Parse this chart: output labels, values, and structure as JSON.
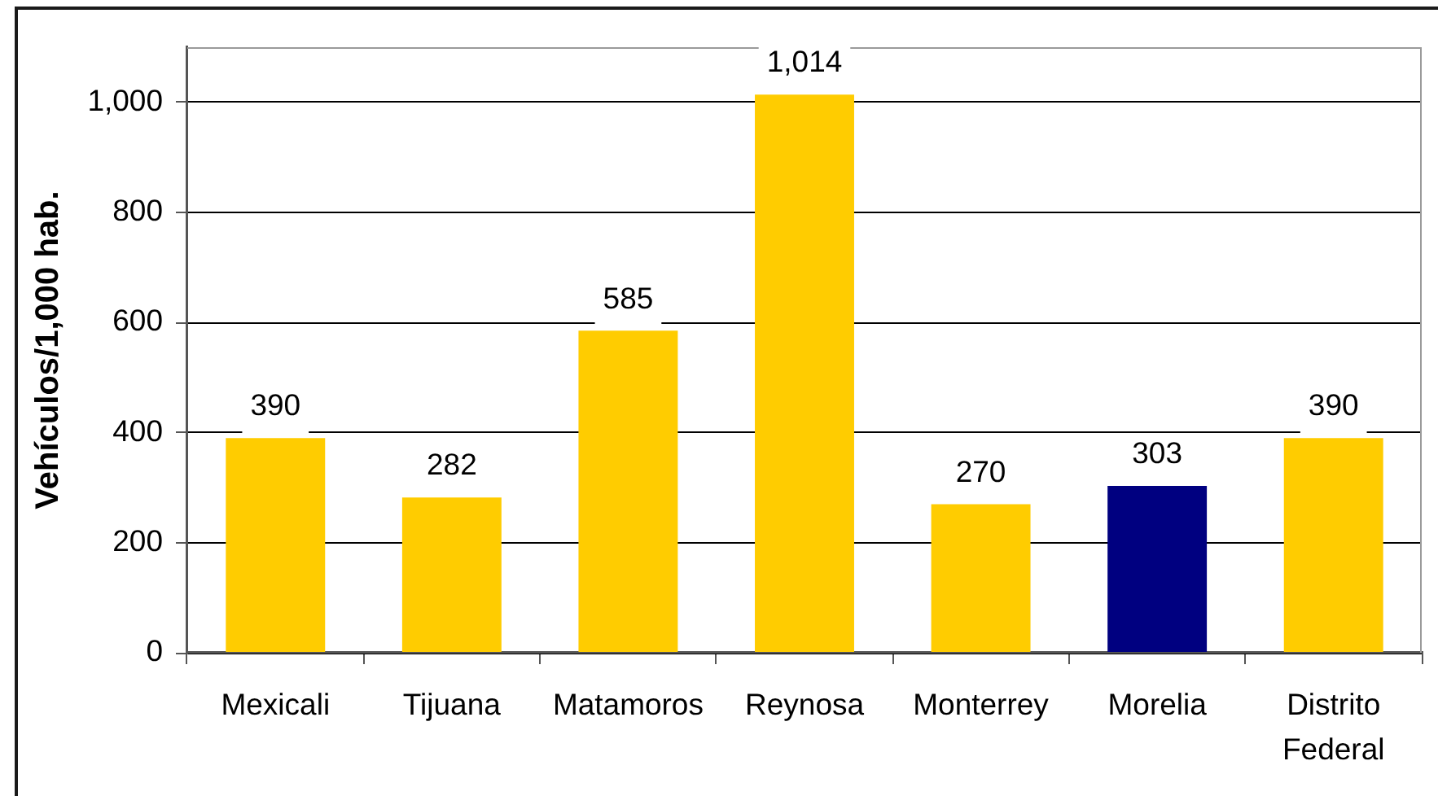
{
  "chart_data": {
    "type": "bar",
    "ylabel": "Vehículos/1,000 hab.",
    "categories": [
      "Mexicali",
      "Tijuana",
      "Matamoros",
      "Reynosa",
      "Monterrey",
      "Morelia",
      "Distrito Federal"
    ],
    "values": [
      390,
      282,
      585,
      1014,
      270,
      303,
      390
    ],
    "colors": [
      "#ffcc00",
      "#ffcc00",
      "#ffcc00",
      "#ffcc00",
      "#ffcc00",
      "#000080",
      "#ffcc00"
    ],
    "value_labels": [
      "390",
      "282",
      "585",
      "1,014",
      "270",
      "303",
      "390"
    ],
    "ylim": [
      0,
      1100
    ],
    "yticks": [
      0,
      200,
      400,
      600,
      800,
      {
        "value": 1000,
        "label": "1,000"
      }
    ],
    "grid": "y"
  }
}
